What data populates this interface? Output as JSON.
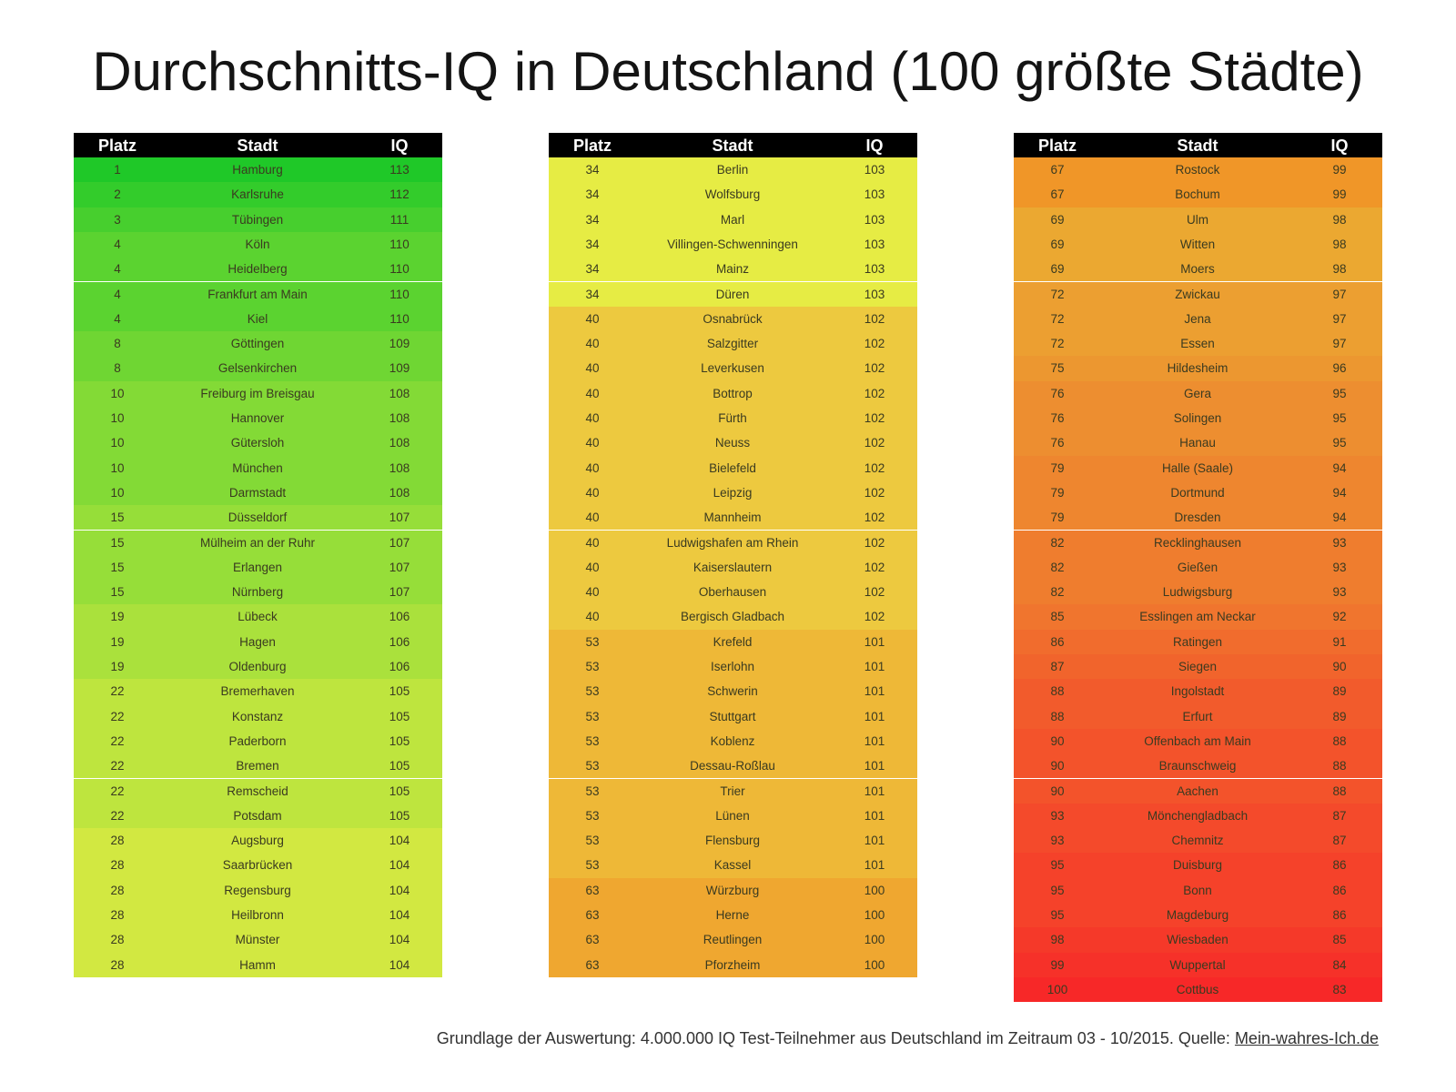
{
  "title": "Durchschnitts-IQ in Deutschland (100 größte Städte)",
  "headers": {
    "rank": "Platz",
    "city": "Stadt",
    "iq": "IQ"
  },
  "footer": {
    "text": "Grundlage der Auswertung: 4.000.000 IQ Test-Teilnehmer aus Deutschland im Zeitraum 03 - 10/2015. Quelle: ",
    "source": "Mein-wahres-Ich.de"
  },
  "colors": {
    "high": "#1fc828",
    "mid": "#e6ec44",
    "low": "#f72828"
  },
  "chart_data": {
    "type": "table",
    "columns": [
      "Platz",
      "Stadt",
      "IQ"
    ],
    "rows": [
      {
        "rank": 1,
        "city": "Hamburg",
        "iq": 113
      },
      {
        "rank": 2,
        "city": "Karlsruhe",
        "iq": 112
      },
      {
        "rank": 3,
        "city": "Tübingen",
        "iq": 111
      },
      {
        "rank": 4,
        "city": "Köln",
        "iq": 110
      },
      {
        "rank": 4,
        "city": "Heidelberg",
        "iq": 110
      },
      {
        "rank": 4,
        "city": "Frankfurt am Main",
        "iq": 110
      },
      {
        "rank": 4,
        "city": "Kiel",
        "iq": 110
      },
      {
        "rank": 8,
        "city": "Göttingen",
        "iq": 109
      },
      {
        "rank": 8,
        "city": "Gelsenkirchen",
        "iq": 109
      },
      {
        "rank": 10,
        "city": "Freiburg im Breisgau",
        "iq": 108
      },
      {
        "rank": 10,
        "city": "Hannover",
        "iq": 108
      },
      {
        "rank": 10,
        "city": "Gütersloh",
        "iq": 108
      },
      {
        "rank": 10,
        "city": "München",
        "iq": 108
      },
      {
        "rank": 10,
        "city": "Darmstadt",
        "iq": 108
      },
      {
        "rank": 15,
        "city": "Düsseldorf",
        "iq": 107
      },
      {
        "rank": 15,
        "city": "Mülheim an der Ruhr",
        "iq": 107
      },
      {
        "rank": 15,
        "city": "Erlangen",
        "iq": 107
      },
      {
        "rank": 15,
        "city": "Nürnberg",
        "iq": 107
      },
      {
        "rank": 19,
        "city": "Lübeck",
        "iq": 106
      },
      {
        "rank": 19,
        "city": "Hagen",
        "iq": 106
      },
      {
        "rank": 19,
        "city": "Oldenburg",
        "iq": 106
      },
      {
        "rank": 22,
        "city": "Bremerhaven",
        "iq": 105
      },
      {
        "rank": 22,
        "city": "Konstanz",
        "iq": 105
      },
      {
        "rank": 22,
        "city": "Paderborn",
        "iq": 105
      },
      {
        "rank": 22,
        "city": "Bremen",
        "iq": 105
      },
      {
        "rank": 22,
        "city": "Remscheid",
        "iq": 105
      },
      {
        "rank": 22,
        "city": "Potsdam",
        "iq": 105
      },
      {
        "rank": 28,
        "city": "Augsburg",
        "iq": 104
      },
      {
        "rank": 28,
        "city": "Saarbrücken",
        "iq": 104
      },
      {
        "rank": 28,
        "city": "Regensburg",
        "iq": 104
      },
      {
        "rank": 28,
        "city": "Heilbronn",
        "iq": 104
      },
      {
        "rank": 28,
        "city": "Münster",
        "iq": 104
      },
      {
        "rank": 28,
        "city": "Hamm",
        "iq": 104
      },
      {
        "rank": 34,
        "city": "Berlin",
        "iq": 103
      },
      {
        "rank": 34,
        "city": "Wolfsburg",
        "iq": 103
      },
      {
        "rank": 34,
        "city": "Marl",
        "iq": 103
      },
      {
        "rank": 34,
        "city": "Villingen-Schwenningen",
        "iq": 103
      },
      {
        "rank": 34,
        "city": "Mainz",
        "iq": 103
      },
      {
        "rank": 34,
        "city": "Düren",
        "iq": 103
      },
      {
        "rank": 40,
        "city": "Osnabrück",
        "iq": 102
      },
      {
        "rank": 40,
        "city": "Salzgitter",
        "iq": 102
      },
      {
        "rank": 40,
        "city": "Leverkusen",
        "iq": 102
      },
      {
        "rank": 40,
        "city": "Bottrop",
        "iq": 102
      },
      {
        "rank": 40,
        "city": "Fürth",
        "iq": 102
      },
      {
        "rank": 40,
        "city": "Neuss",
        "iq": 102
      },
      {
        "rank": 40,
        "city": "Bielefeld",
        "iq": 102
      },
      {
        "rank": 40,
        "city": "Leipzig",
        "iq": 102
      },
      {
        "rank": 40,
        "city": "Mannheim",
        "iq": 102
      },
      {
        "rank": 40,
        "city": "Ludwigshafen am Rhein",
        "iq": 102
      },
      {
        "rank": 40,
        "city": "Kaiserslautern",
        "iq": 102
      },
      {
        "rank": 40,
        "city": "Oberhausen",
        "iq": 102
      },
      {
        "rank": 40,
        "city": "Bergisch Gladbach",
        "iq": 102
      },
      {
        "rank": 53,
        "city": "Krefeld",
        "iq": 101
      },
      {
        "rank": 53,
        "city": "Iserlohn",
        "iq": 101
      },
      {
        "rank": 53,
        "city": "Schwerin",
        "iq": 101
      },
      {
        "rank": 53,
        "city": "Stuttgart",
        "iq": 101
      },
      {
        "rank": 53,
        "city": "Koblenz",
        "iq": 101
      },
      {
        "rank": 53,
        "city": "Dessau-Roßlau",
        "iq": 101
      },
      {
        "rank": 53,
        "city": "Trier",
        "iq": 101
      },
      {
        "rank": 53,
        "city": "Lünen",
        "iq": 101
      },
      {
        "rank": 53,
        "city": "Flensburg",
        "iq": 101
      },
      {
        "rank": 53,
        "city": "Kassel",
        "iq": 101
      },
      {
        "rank": 63,
        "city": "Würzburg",
        "iq": 100
      },
      {
        "rank": 63,
        "city": "Herne",
        "iq": 100
      },
      {
        "rank": 63,
        "city": "Reutlingen",
        "iq": 100
      },
      {
        "rank": 63,
        "city": "Pforzheim",
        "iq": 100
      },
      {
        "rank": 67,
        "city": "Rostock",
        "iq": 99
      },
      {
        "rank": 67,
        "city": "Bochum",
        "iq": 99
      },
      {
        "rank": 69,
        "city": "Ulm",
        "iq": 98
      },
      {
        "rank": 69,
        "city": "Witten",
        "iq": 98
      },
      {
        "rank": 69,
        "city": "Moers",
        "iq": 98
      },
      {
        "rank": 72,
        "city": "Zwickau",
        "iq": 97
      },
      {
        "rank": 72,
        "city": "Jena",
        "iq": 97
      },
      {
        "rank": 72,
        "city": "Essen",
        "iq": 97
      },
      {
        "rank": 75,
        "city": "Hildesheim",
        "iq": 96
      },
      {
        "rank": 76,
        "city": "Gera",
        "iq": 95
      },
      {
        "rank": 76,
        "city": "Solingen",
        "iq": 95
      },
      {
        "rank": 76,
        "city": "Hanau",
        "iq": 95
      },
      {
        "rank": 79,
        "city": "Halle (Saale)",
        "iq": 94
      },
      {
        "rank": 79,
        "city": "Dortmund",
        "iq": 94
      },
      {
        "rank": 79,
        "city": "Dresden",
        "iq": 94
      },
      {
        "rank": 82,
        "city": "Recklinghausen",
        "iq": 93
      },
      {
        "rank": 82,
        "city": "Gießen",
        "iq": 93
      },
      {
        "rank": 82,
        "city": "Ludwigsburg",
        "iq": 93
      },
      {
        "rank": 85,
        "city": "Esslingen am Neckar",
        "iq": 92
      },
      {
        "rank": 86,
        "city": "Ratingen",
        "iq": 91
      },
      {
        "rank": 87,
        "city": "Siegen",
        "iq": 90
      },
      {
        "rank": 88,
        "city": "Ingolstadt",
        "iq": 89
      },
      {
        "rank": 88,
        "city": "Erfurt",
        "iq": 89
      },
      {
        "rank": 90,
        "city": "Offenbach am Main",
        "iq": 88
      },
      {
        "rank": 90,
        "city": "Braunschweig",
        "iq": 88
      },
      {
        "rank": 90,
        "city": "Aachen",
        "iq": 88
      },
      {
        "rank": 93,
        "city": "Mönchengladbach",
        "iq": 87
      },
      {
        "rank": 93,
        "city": "Chemnitz",
        "iq": 87
      },
      {
        "rank": 95,
        "city": "Duisburg",
        "iq": 86
      },
      {
        "rank": 95,
        "city": "Bonn",
        "iq": 86
      },
      {
        "rank": 95,
        "city": "Magdeburg",
        "iq": 86
      },
      {
        "rank": 98,
        "city": "Wiesbaden",
        "iq": 85
      },
      {
        "rank": 99,
        "city": "Wuppertal",
        "iq": 84
      },
      {
        "rank": 100,
        "city": "Cottbus",
        "iq": 83
      }
    ]
  }
}
